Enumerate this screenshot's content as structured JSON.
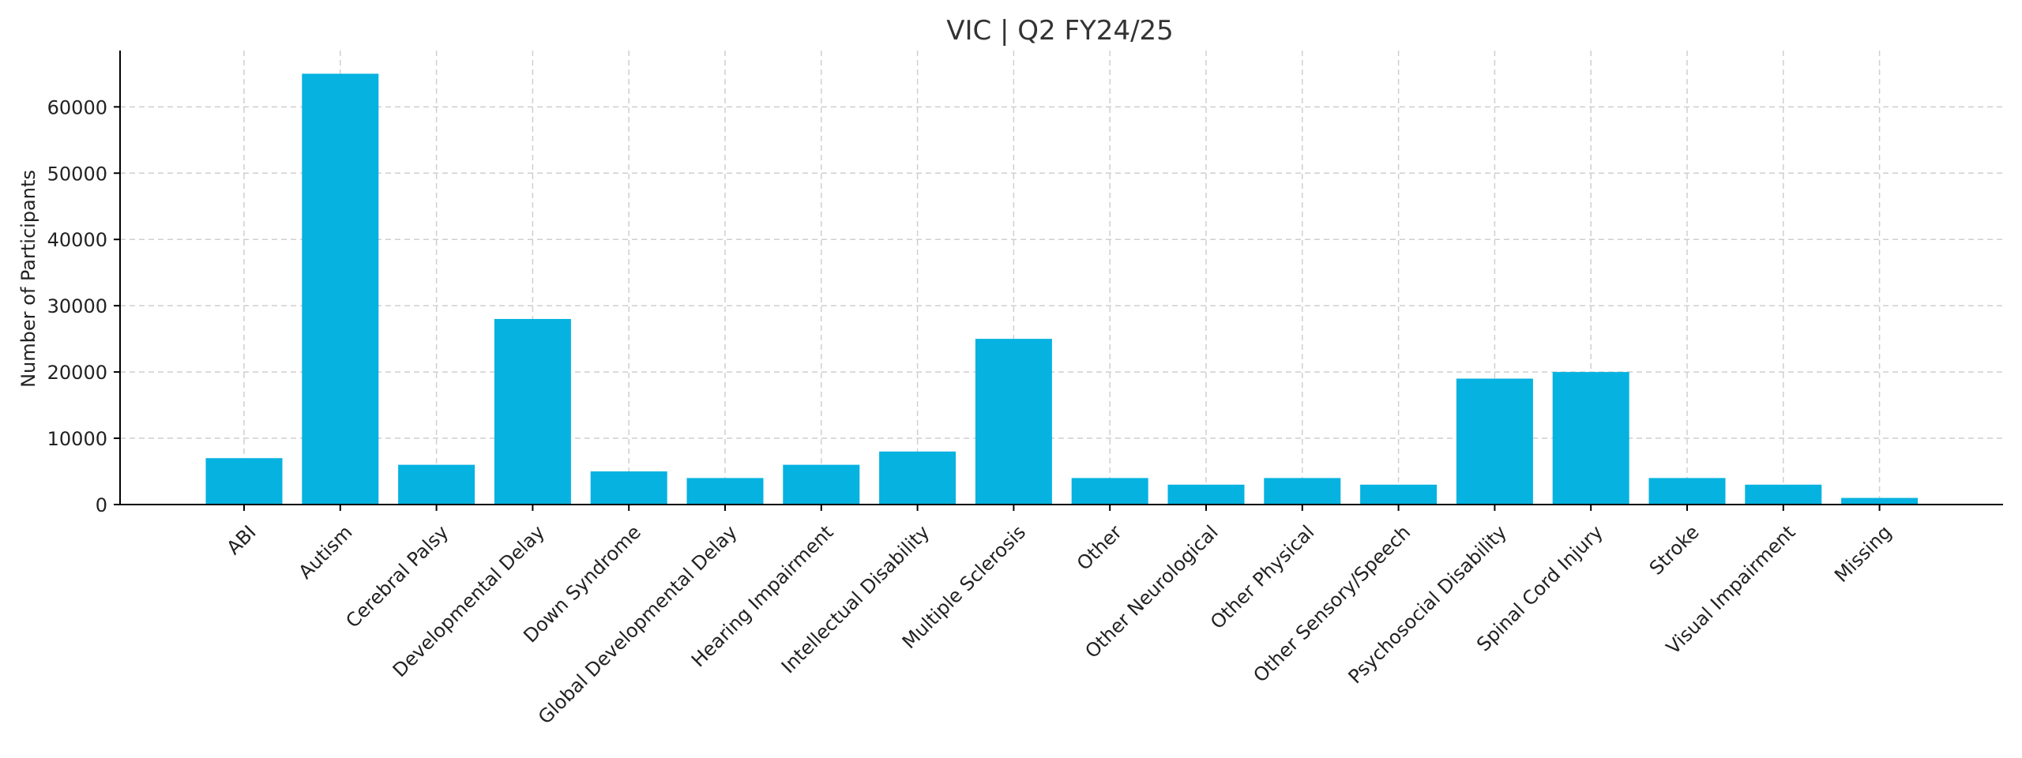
{
  "chart_data": {
    "type": "bar",
    "title": "VIC | Q2 FY24/25",
    "xlabel": "",
    "ylabel": "Number of Participants",
    "ylim": [
      0,
      68500
    ],
    "yticks": [
      0,
      10000,
      20000,
      30000,
      40000,
      50000,
      60000
    ],
    "grid": true,
    "bar_color": "#06b2e0",
    "categories": [
      "ABI",
      "Autism",
      "Cerebral Palsy",
      "Developmental Delay",
      "Down Syndrome",
      "Global Developmental Delay",
      "Hearing Impairment",
      "Intellectual Disability",
      "Multiple Sclerosis",
      "Other",
      "Other Neurological",
      "Other Physical",
      "Other Sensory/Speech",
      "Psychosocial Disability",
      "Spinal Cord Injury",
      "Stroke",
      "Visual Impairment",
      "Missing"
    ],
    "values": [
      7000,
      65000,
      6000,
      28000,
      5000,
      4000,
      6000,
      8000,
      25000,
      4000,
      3000,
      4000,
      3000,
      19000,
      20000,
      4000,
      3000,
      1000
    ]
  }
}
